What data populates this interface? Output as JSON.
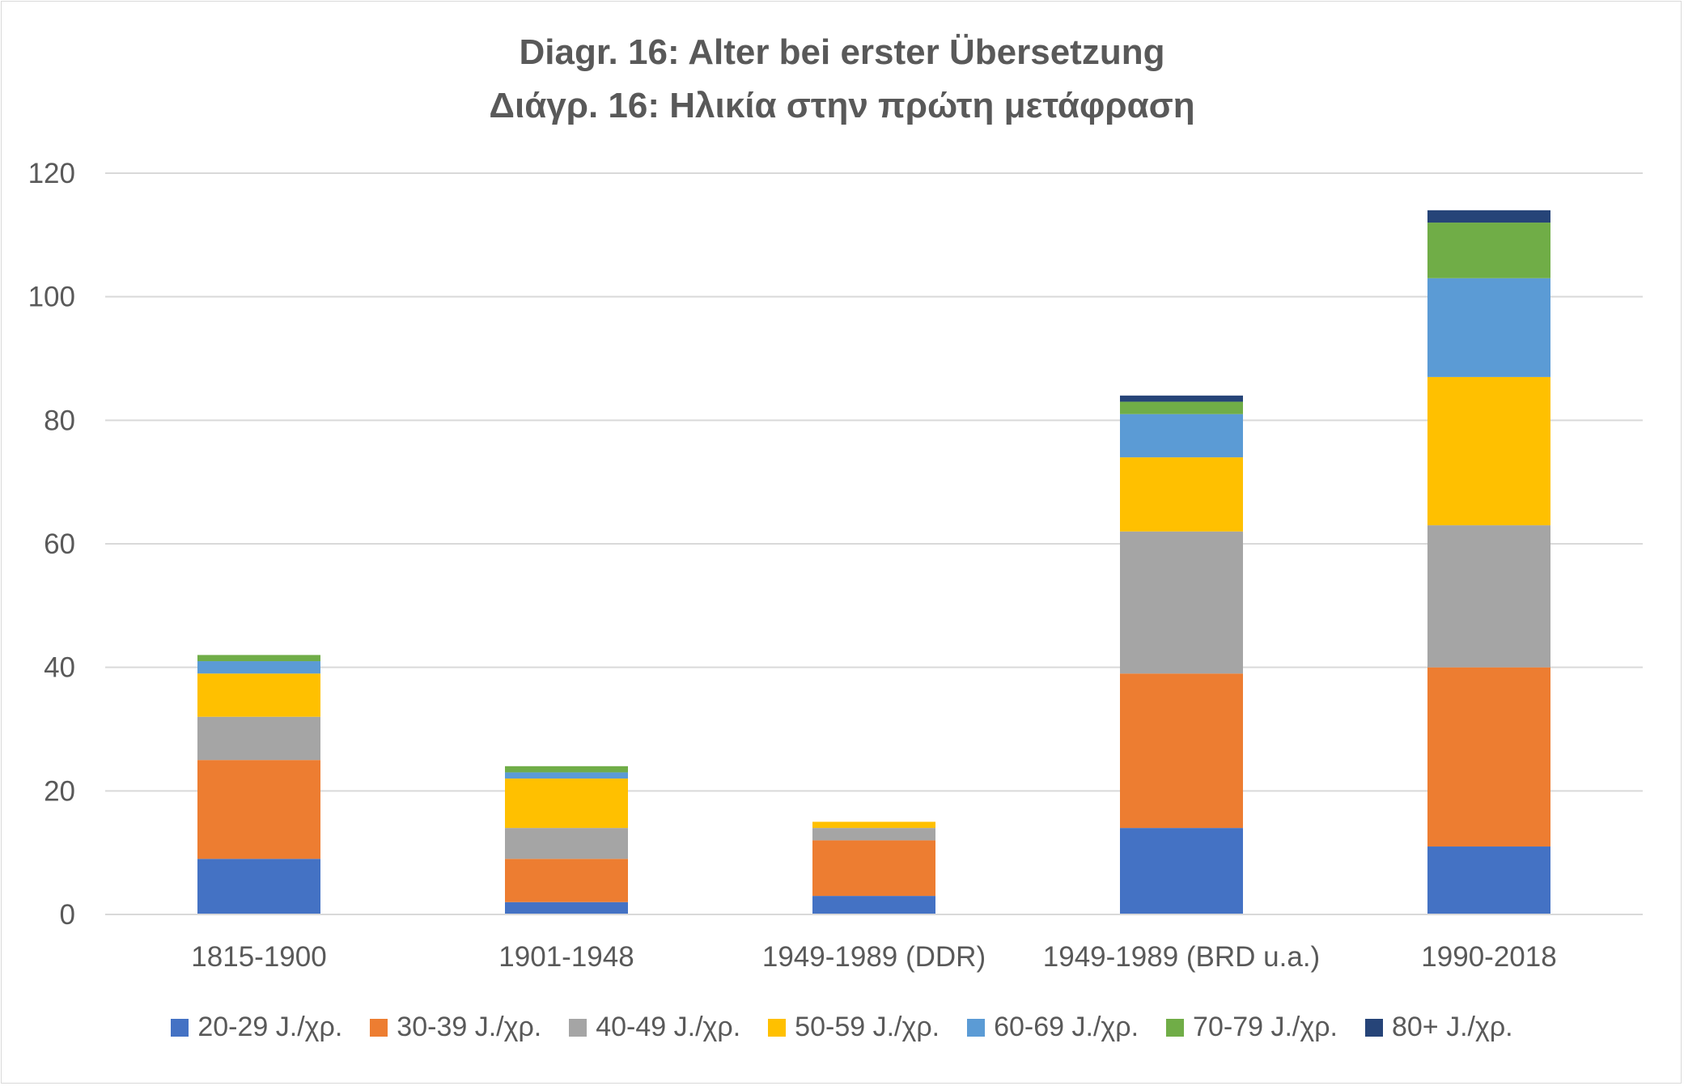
{
  "chart_data": {
    "type": "bar",
    "stacked": true,
    "title": "Diagr. 16: Alter bei erster Übersetzung",
    "subtitle": "Διάγρ. 16: Ηλικία στην πρώτη μετάφραση",
    "xlabel": "",
    "ylabel": "",
    "ylim": [
      0,
      120
    ],
    "yticks": [
      0,
      20,
      40,
      60,
      80,
      100,
      120
    ],
    "grid": true,
    "legend_position": "bottom",
    "categories": [
      "1815-1900",
      "1901-1948",
      "1949-1989 (DDR)",
      "1949-1989 (BRD u.a.)",
      "1990-2018"
    ],
    "series": [
      {
        "name": "20-29 J./χρ.",
        "color": "#4472c4",
        "values": [
          9,
          2,
          3,
          14,
          11
        ]
      },
      {
        "name": "30-39 J./χρ.",
        "color": "#ed7d31",
        "values": [
          16,
          7,
          9,
          25,
          29
        ]
      },
      {
        "name": "40-49 J./χρ.",
        "color": "#a5a5a5",
        "values": [
          7,
          5,
          2,
          23,
          23
        ]
      },
      {
        "name": "50-59 J./χρ.",
        "color": "#ffc000",
        "values": [
          7,
          8,
          1,
          12,
          24
        ]
      },
      {
        "name": "60-69 J./χρ.",
        "color": "#5b9bd5",
        "values": [
          2,
          1,
          0,
          7,
          16
        ]
      },
      {
        "name": "70-79 J./χρ.",
        "color": "#70ad47",
        "values": [
          1,
          1,
          0,
          2,
          9
        ]
      },
      {
        "name": "80+ J./χρ.",
        "color": "#264478",
        "values": [
          0,
          0,
          0,
          1,
          2
        ]
      }
    ]
  }
}
